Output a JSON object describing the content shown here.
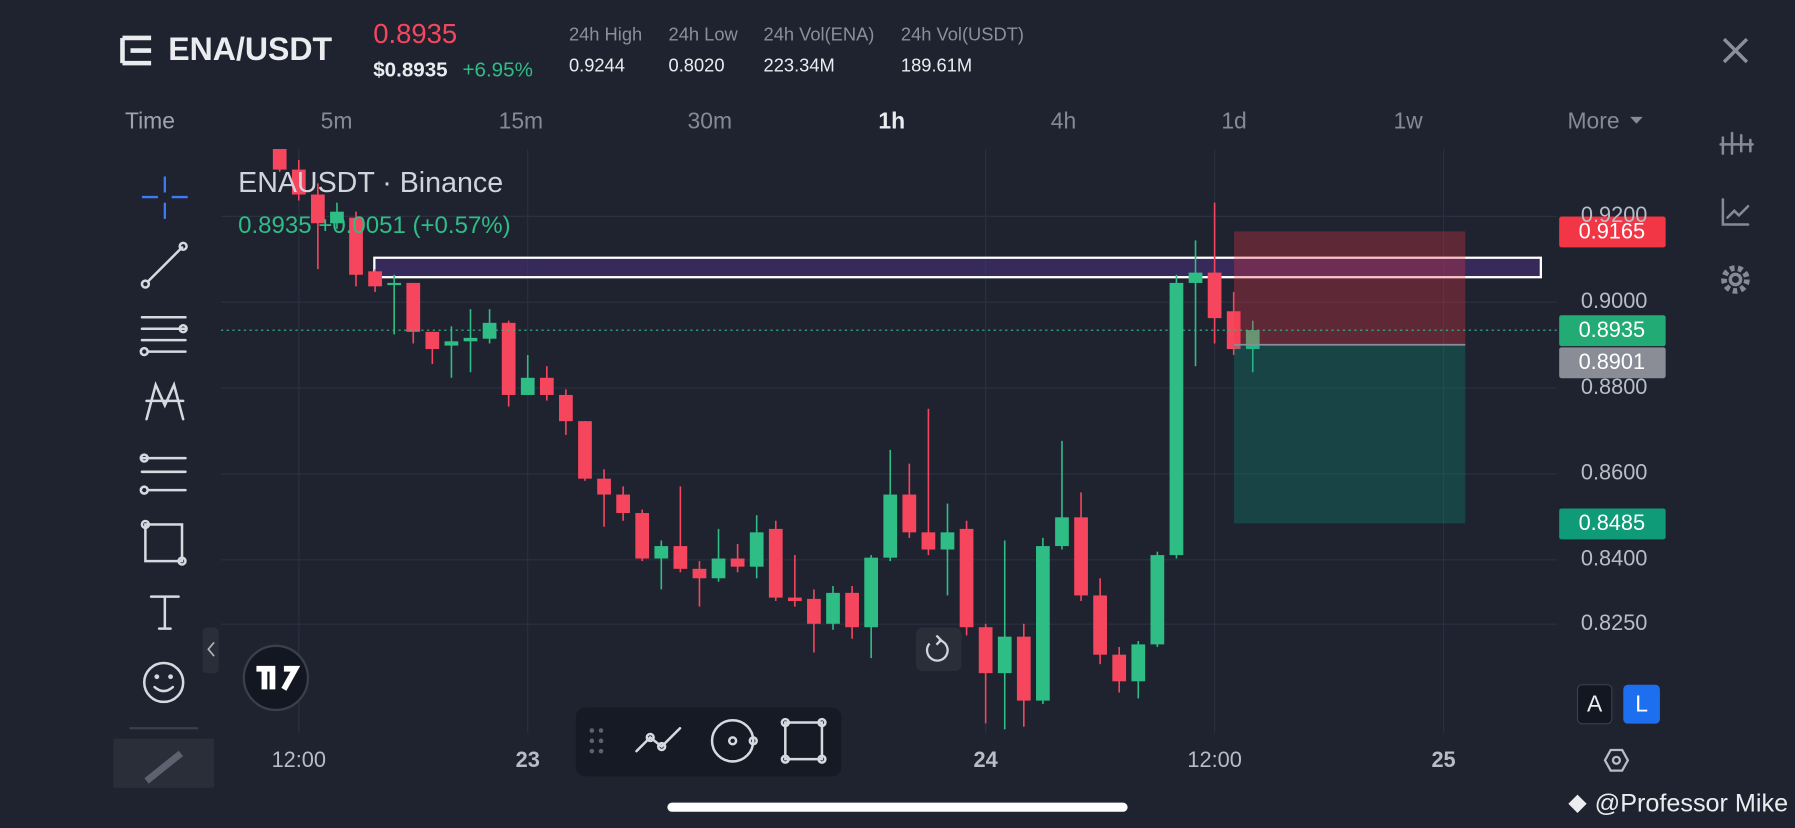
{
  "header": {
    "pair": "ENA/USDT",
    "last_price": "0.8935",
    "usd_price": "$0.8935",
    "change": "+6.95%",
    "stats": [
      {
        "label": "24h High",
        "value": "0.9244"
      },
      {
        "label": "24h Low",
        "value": "0.8020"
      },
      {
        "label": "24h Vol(ENA)",
        "value": "223.34M"
      },
      {
        "label": "24h Vol(USDT)",
        "value": "189.61M"
      }
    ]
  },
  "timeframes": [
    "Time",
    "5m",
    "15m",
    "30m",
    "1h",
    "4h",
    "1d",
    "1w",
    "More"
  ],
  "chart_data": {
    "type": "candlestick",
    "title": "ENAUSDT · Binance",
    "subtitle": "0.8935 +0.0051 (+0.57%)",
    "up_color": "#2ebd85",
    "down_color": "#f6465d",
    "x": [
      11,
      12,
      13,
      14,
      15,
      16,
      17,
      18,
      19,
      20,
      21,
      22,
      23,
      24,
      25,
      26,
      27,
      28,
      29,
      30,
      31,
      32,
      33,
      34,
      35,
      36,
      37,
      38,
      39,
      40,
      41,
      42,
      43,
      44,
      45,
      46,
      47,
      48,
      49,
      50,
      51,
      52,
      53,
      54,
      55,
      56,
      57,
      58,
      59,
      60,
      61,
      62
    ],
    "open": [
      0.9357,
      0.9309,
      0.9251,
      0.9184,
      0.9197,
      0.9072,
      0.904,
      0.9045,
      0.8931,
      0.8899,
      0.8909,
      0.8915,
      0.8952,
      0.8784,
      0.8824,
      0.8784,
      0.8723,
      0.8589,
      0.8552,
      0.8509,
      0.8403,
      0.8432,
      0.8379,
      0.8357,
      0.8403,
      0.8384,
      0.8472,
      0.8312,
      0.8309,
      0.8251,
      0.8323,
      0.8243,
      0.8405,
      0.8552,
      0.8464,
      0.8424,
      0.8472,
      0.8243,
      0.8136,
      0.8221,
      0.8072,
      0.8432,
      0.8499,
      0.8317,
      0.8179,
      0.8117,
      0.8203,
      0.8411,
      0.9045,
      0.9069,
      0.8979,
      0.8891
    ],
    "high": [
      0.9357,
      0.9331,
      0.9277,
      0.9232,
      0.9211,
      0.9077,
      0.9064,
      0.9045,
      0.8931,
      0.8944,
      0.8984,
      0.8984,
      0.8957,
      0.8877,
      0.8851,
      0.8797,
      0.8723,
      0.8611,
      0.8571,
      0.8517,
      0.8445,
      0.8571,
      0.8397,
      0.8472,
      0.8437,
      0.8504,
      0.8491,
      0.8411,
      0.8331,
      0.8339,
      0.8339,
      0.8411,
      0.8656,
      0.8624,
      0.8752,
      0.8531,
      0.8491,
      0.8251,
      0.8445,
      0.8251,
      0.8451,
      0.8677,
      0.8557,
      0.8357,
      0.8197,
      0.8211,
      0.8419,
      0.9064,
      0.9144,
      0.9232,
      0.9024,
      0.8957
    ],
    "low": [
      0.9304,
      0.9237,
      0.9077,
      0.9171,
      0.9037,
      0.9024,
      0.8925,
      0.8904,
      0.8856,
      0.8824,
      0.8837,
      0.8904,
      0.8757,
      0.8784,
      0.8771,
      0.8691,
      0.8584,
      0.8477,
      0.8491,
      0.8397,
      0.8331,
      0.8371,
      0.8291,
      0.8349,
      0.8371,
      0.8357,
      0.8304,
      0.8291,
      0.8184,
      0.8237,
      0.8216,
      0.8171,
      0.8397,
      0.8451,
      0.8411,
      0.8317,
      0.8224,
      0.8019,
      0.8005,
      0.8011,
      0.8064,
      0.8424,
      0.8304,
      0.8157,
      0.8091,
      0.8077,
      0.8197,
      0.8403,
      0.8851,
      0.8904,
      0.8877,
      0.8837
    ],
    "close": [
      0.9309,
      0.9251,
      0.9184,
      0.9211,
      0.9064,
      0.9037,
      0.9045,
      0.8931,
      0.8891,
      0.8909,
      0.8917,
      0.8952,
      0.8784,
      0.8824,
      0.8784,
      0.8723,
      0.8589,
      0.8552,
      0.8509,
      0.8403,
      0.8432,
      0.8379,
      0.8357,
      0.8403,
      0.8384,
      0.8464,
      0.8312,
      0.8304,
      0.8251,
      0.8323,
      0.8243,
      0.8405,
      0.8552,
      0.8464,
      0.8424,
      0.8464,
      0.8243,
      0.8136,
      0.8221,
      0.8072,
      0.8432,
      0.8499,
      0.8317,
      0.8179,
      0.8117,
      0.8203,
      0.8411,
      0.9045,
      0.9069,
      0.8963,
      0.8891,
      0.8935
    ],
    "xlim": [
      7.92,
      77.94
    ],
    "ylim": [
      0.7997,
      0.9357
    ],
    "xticks": [
      {
        "value": 12,
        "label": "12:00"
      },
      {
        "value": 24,
        "label": "23"
      },
      {
        "value": 48,
        "label": "24"
      },
      {
        "value": 60,
        "label": "12:00"
      },
      {
        "value": 72,
        "label": "25"
      }
    ],
    "yticks": [
      {
        "value": 0.92,
        "label": "0.9200"
      },
      {
        "value": 0.9,
        "label": "0.9000"
      },
      {
        "value": 0.88,
        "label": "0.8800"
      },
      {
        "value": 0.86,
        "label": "0.8600"
      },
      {
        "value": 0.84,
        "label": "0.8400"
      },
      {
        "value": 0.825,
        "label": "0.8250"
      }
    ],
    "grid": true,
    "current_price": 0.8935,
    "price_labels": [
      {
        "value": 0.9165,
        "label": "0.9165",
        "color": "#f23645"
      },
      {
        "value": 0.8935,
        "label": "0.8935",
        "color": "#22ab74"
      },
      {
        "value": 0.8901,
        "label": "0.8901",
        "color": "#8a8d96"
      },
      {
        "value": 0.8485,
        "label": "0.8485",
        "color": "#0f9b78"
      }
    ]
  },
  "scale_buttons": [
    "A",
    "L"
  ],
  "watermark": "@Professor Mike"
}
